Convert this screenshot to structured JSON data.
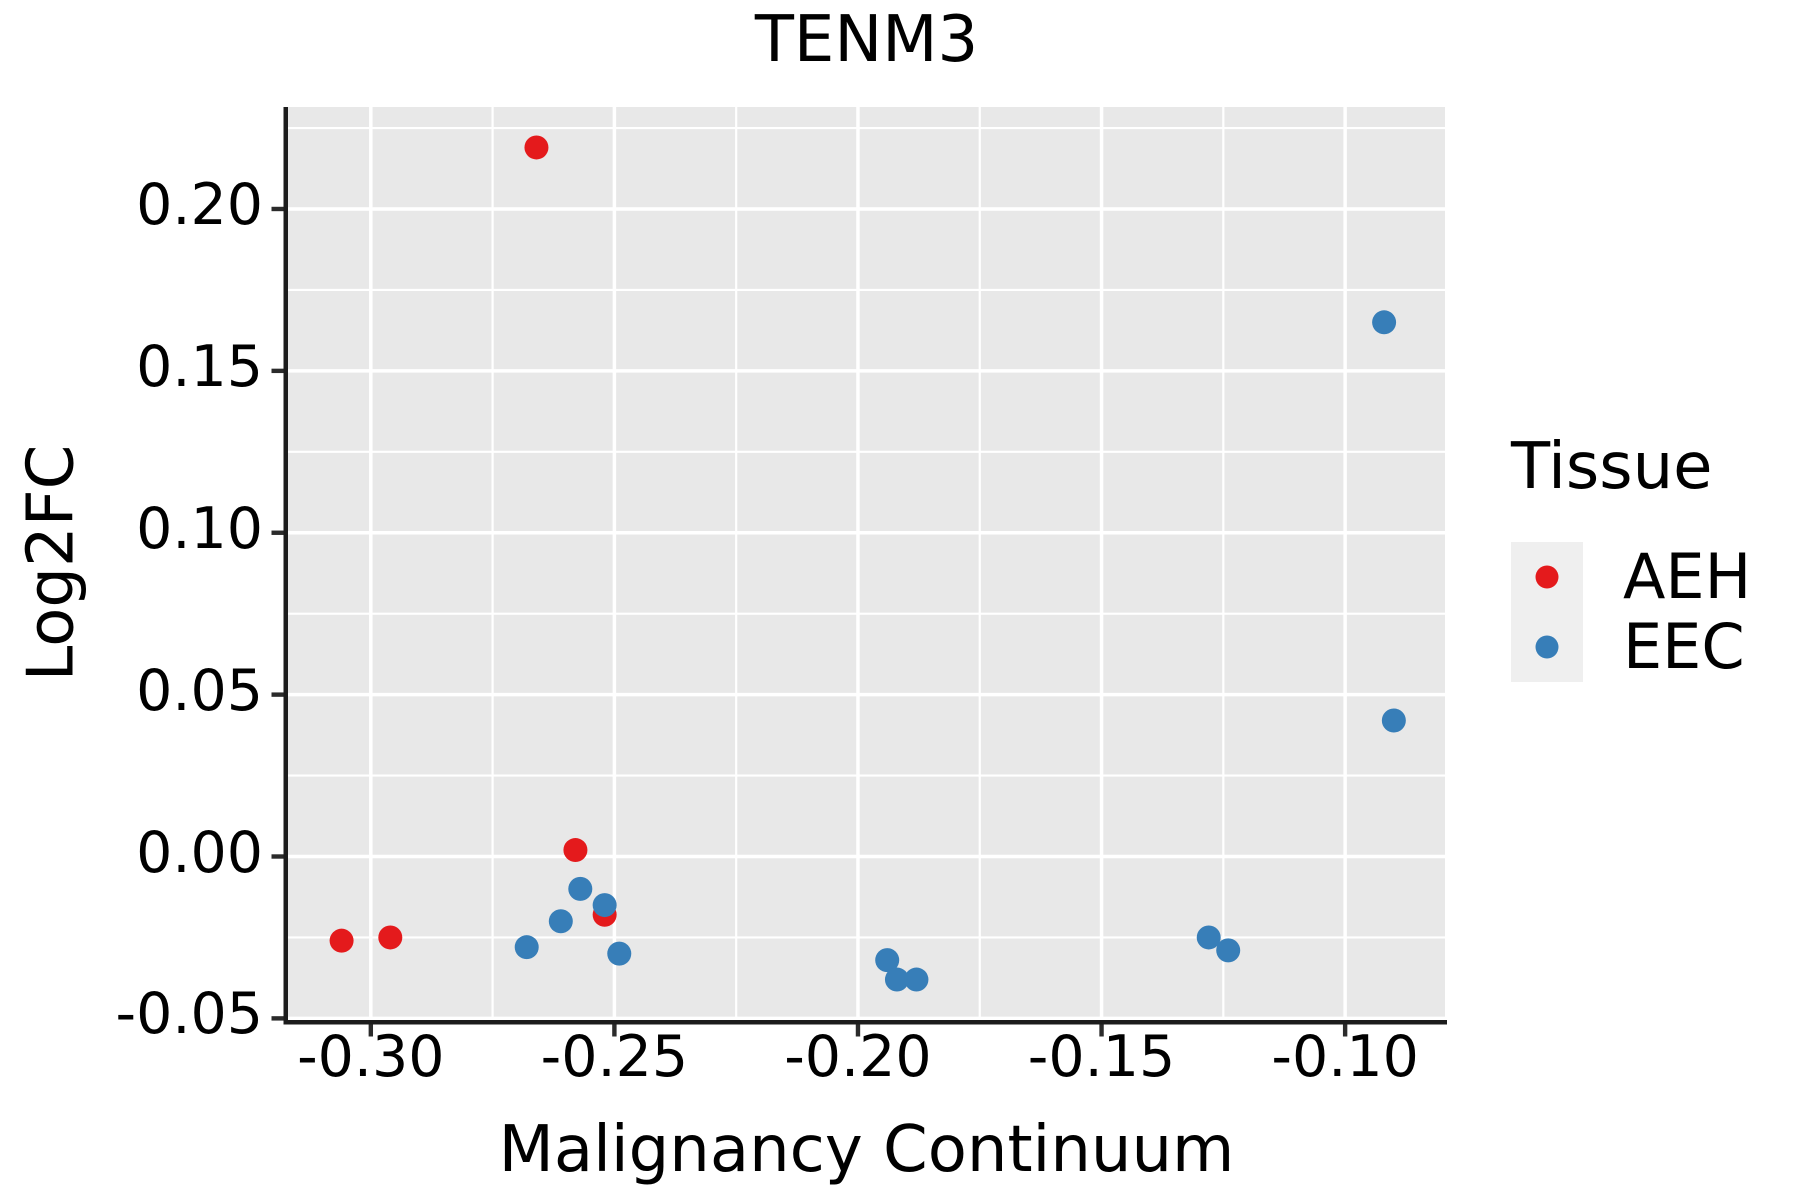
{
  "chart_data": {
    "type": "scatter",
    "title": "TENM3",
    "xlabel": "Malignancy Continuum",
    "ylabel": "Log2FC",
    "xlim": [
      -0.317,
      -0.0795
    ],
    "ylim": [
      -0.0505,
      0.2315
    ],
    "x_ticks": [
      -0.3,
      -0.25,
      -0.2,
      -0.15,
      -0.1
    ],
    "x_tick_labels": [
      "-0.30",
      "-0.25",
      "-0.20",
      "-0.15",
      "-0.10"
    ],
    "x_minor_ticks": [
      -0.275,
      -0.225,
      -0.175,
      -0.125
    ],
    "y_ticks": [
      0.2,
      0.15,
      0.1,
      0.05,
      0.0,
      -0.05
    ],
    "y_tick_labels": [
      "0.20",
      "0.15",
      "0.10",
      "0.05",
      "0.00",
      "-0.05"
    ],
    "y_minor_ticks": [
      0.225,
      0.175,
      0.125,
      0.075,
      0.025,
      -0.025
    ],
    "grid": {
      "major": true,
      "minor": true,
      "color": "#ffffff"
    },
    "panel_background": "#e8e8e8",
    "legend": {
      "title": "Tissue",
      "position": "right",
      "entries": [
        {
          "label": "AEH",
          "color": "#e41a1c"
        },
        {
          "label": "EEC",
          "color": "#377eb8"
        }
      ]
    },
    "series": [
      {
        "name": "AEH",
        "color": "#e41a1c",
        "points": [
          [
            -0.306,
            -0.026
          ],
          [
            -0.296,
            -0.025
          ],
          [
            -0.266,
            0.219
          ],
          [
            -0.258,
            0.002
          ],
          [
            -0.252,
            -0.018
          ]
        ]
      },
      {
        "name": "EEC",
        "color": "#377eb8",
        "points": [
          [
            -0.268,
            -0.028
          ],
          [
            -0.261,
            -0.02
          ],
          [
            -0.257,
            -0.01
          ],
          [
            -0.252,
            -0.015
          ],
          [
            -0.249,
            -0.03
          ],
          [
            -0.194,
            -0.032
          ],
          [
            -0.192,
            -0.038
          ],
          [
            -0.188,
            -0.038
          ],
          [
            -0.128,
            -0.025
          ],
          [
            -0.124,
            -0.029
          ],
          [
            -0.092,
            0.165
          ],
          [
            -0.09,
            0.042
          ]
        ]
      }
    ]
  },
  "colors": {
    "point_red": "#e41a1c",
    "point_blue": "#377eb8",
    "panel_bg": "#e8e8e8",
    "grid": "#ffffff",
    "spine": "#1c1c1c",
    "tick_mark": "#2b2b2b",
    "text": "#000000",
    "legend_key_bg": "#efefef",
    "figure_bg": "#ffffff"
  }
}
